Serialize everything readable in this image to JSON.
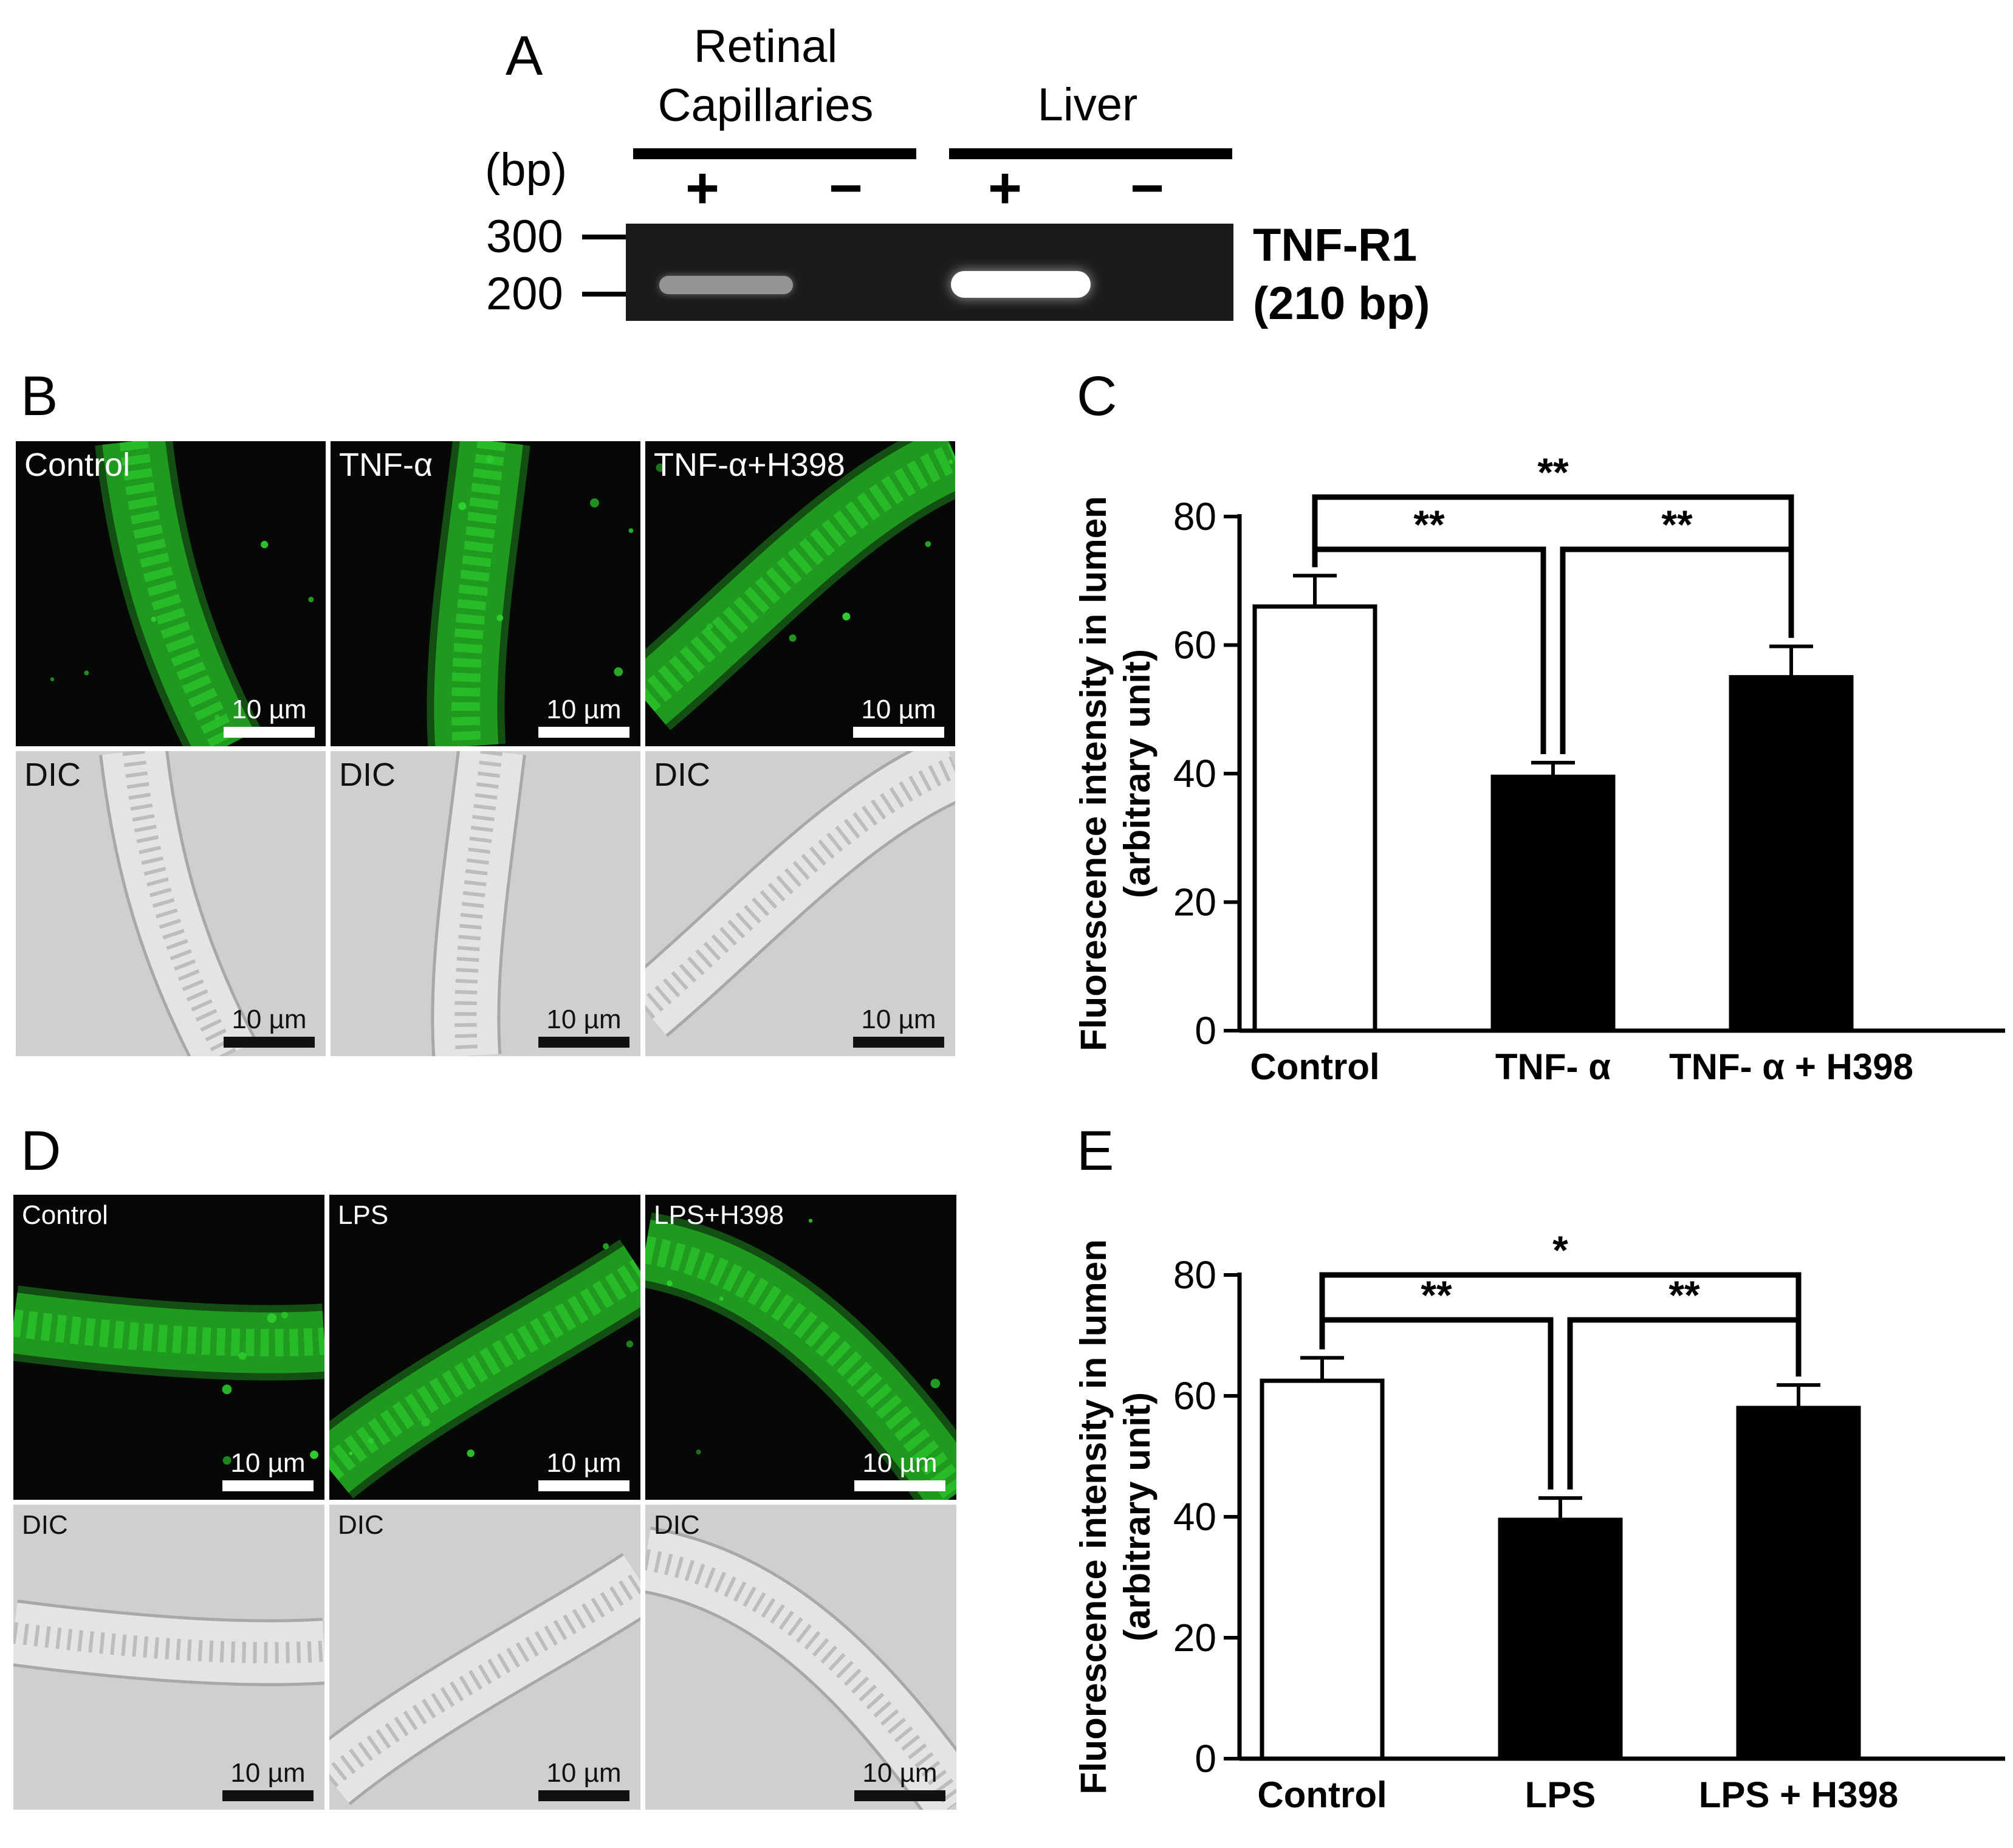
{
  "panels": {
    "a": {
      "letter": "A",
      "bp_label": "(bp)",
      "groups": [
        {
          "name": "Retinal Capillaries",
          "lanes": [
            "+",
            "−"
          ]
        },
        {
          "name": "Liver",
          "lanes": [
            "+",
            "−"
          ]
        }
      ],
      "ladder": [
        "300",
        "200"
      ],
      "target_label": "TNF-R1",
      "target_size": "(210 bp)",
      "band_intensity": [
        0.45,
        0.0,
        1.0,
        0.0
      ]
    },
    "b": {
      "letter": "B",
      "fluorescence": [
        "Control",
        "TNF-α",
        "TNF-α+H398"
      ],
      "dic_label": "DIC",
      "scale_bar": "10 µm"
    },
    "c": {
      "letter": "C"
    },
    "d": {
      "letter": "D",
      "fluorescence": [
        "Control",
        "LPS",
        "LPS+H398"
      ],
      "dic_label": "DIC",
      "scale_bar": "10 µm"
    },
    "e": {
      "letter": "E"
    }
  },
  "colors": {
    "fluorescence_green": "#2fd12f",
    "gel_background": "#1b1b1b",
    "control_bar_fill": "#ffffff",
    "treatment_bar_fill": "#000000"
  },
  "chart_data": [
    {
      "panel": "C",
      "type": "bar",
      "categories": [
        "Control",
        "TNF- α",
        "TNF- α  + H398"
      ],
      "values": [
        66,
        39.5,
        55
      ],
      "errors": [
        4.8,
        2.2,
        4.8
      ],
      "bar_fills": [
        "#ffffff",
        "#000000",
        "#000000"
      ],
      "ylabel": "Fluorescence intensity in lumen",
      "ylabel2": "(arbitrary unit)",
      "ylim": [
        0,
        80
      ],
      "yticks": [
        "0",
        "20",
        "40",
        "60",
        "80"
      ],
      "significance": [
        {
          "from": 0,
          "to": 1,
          "label": "**"
        },
        {
          "from": 1,
          "to": 2,
          "label": "**"
        },
        {
          "from": 0,
          "to": 2,
          "label": "**"
        }
      ]
    },
    {
      "panel": "E",
      "type": "bar",
      "categories": [
        "Control",
        "LPS",
        "LPS + H398"
      ],
      "values": [
        62.5,
        39.5,
        58
      ],
      "errors": [
        3.8,
        3.6,
        3.8
      ],
      "bar_fills": [
        "#ffffff",
        "#000000",
        "#000000"
      ],
      "ylabel": "Fluorescence intensity in lumen",
      "ylabel2": "(arbitrary unit)",
      "ylim": [
        0,
        80
      ],
      "yticks": [
        "0",
        "20",
        "40",
        "60",
        "80"
      ],
      "significance": [
        {
          "from": 0,
          "to": 1,
          "label": "**"
        },
        {
          "from": 1,
          "to": 2,
          "label": "**"
        },
        {
          "from": 0,
          "to": 2,
          "label": "*"
        }
      ]
    }
  ]
}
